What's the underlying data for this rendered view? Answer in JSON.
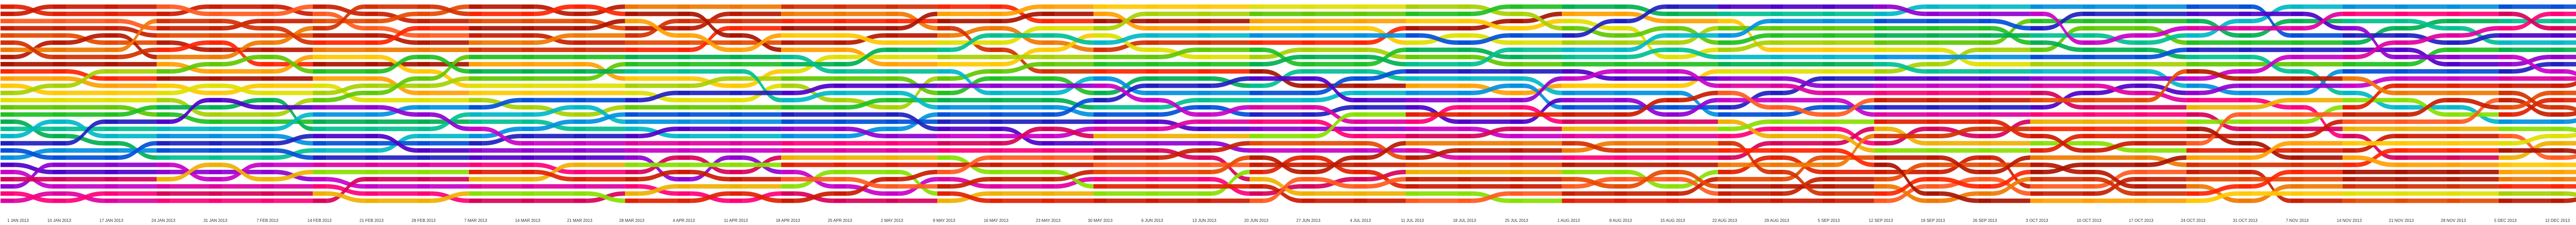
{
  "chart_data": {
    "type": "bump-chart",
    "title": "",
    "xlabel": "",
    "ylabel": "",
    "ranks_visible": 28,
    "x": [
      "1 JAN 2013",
      "10 JAN 2013",
      "17 JAN 2013",
      "24 JAN 2013",
      "31 JAN 2013",
      "7 FEB 2013",
      "14 FEB 2013",
      "21 FEB 2013",
      "28 FEB 2013",
      "7 MAR 2013",
      "14 MAR 2013",
      "21 MAR 2013",
      "28 MAR 2013",
      "4 APR 2013",
      "11 APR 2013",
      "18 APR 2013",
      "25 APR 2013",
      "2 MAY 2013",
      "9 MAY 2013",
      "16 MAY 2013",
      "23 MAY 2013",
      "30 MAY 2013",
      "6 JUN 2013",
      "13 JUN 2013",
      "20 JUN 2013",
      "27 JUN 2013",
      "4 JUL 2013",
      "11 JUL 2013",
      "18 JUL 2013",
      "25 JUL 2013",
      "1 AUG 2013",
      "8 AUG 2013",
      "15 AUG 2013",
      "22 AUG 2013",
      "29 AUG 2013",
      "5 SEP 2013",
      "12 SEP 2013",
      "19 SEP 2013",
      "26 SEP 2013",
      "3 OCT 2013",
      "10 OCT 2013",
      "17 OCT 2013",
      "24 OCT 2013",
      "31 OCT 2013",
      "7 NOV 2013",
      "14 NOV 2013",
      "21 NOV 2013",
      "28 NOV 2013",
      "5 DEC 2013",
      "12 DEC 2013",
      "19 DEC 2013",
      "26 DEC 2013"
    ],
    "palette": [
      "#e32000",
      "#cc1a00",
      "#ff5a1e",
      "#c81e00",
      "#e64a00",
      "#b81800",
      "#f07800",
      "#d43000",
      "#ff2400",
      "#a81400",
      "#ffa000",
      "#ffc800",
      "#e0e000",
      "#a8d000",
      "#60c800",
      "#20c020",
      "#00b050",
      "#00c090",
      "#00b8c8",
      "#0090e0",
      "#0050d8",
      "#2020c0",
      "#5000c8",
      "#9000d0",
      "#c800c8",
      "#e000a0",
      "#ff0078",
      "#d8005a",
      "#f0b000",
      "#88e000"
    ],
    "series": []
  }
}
